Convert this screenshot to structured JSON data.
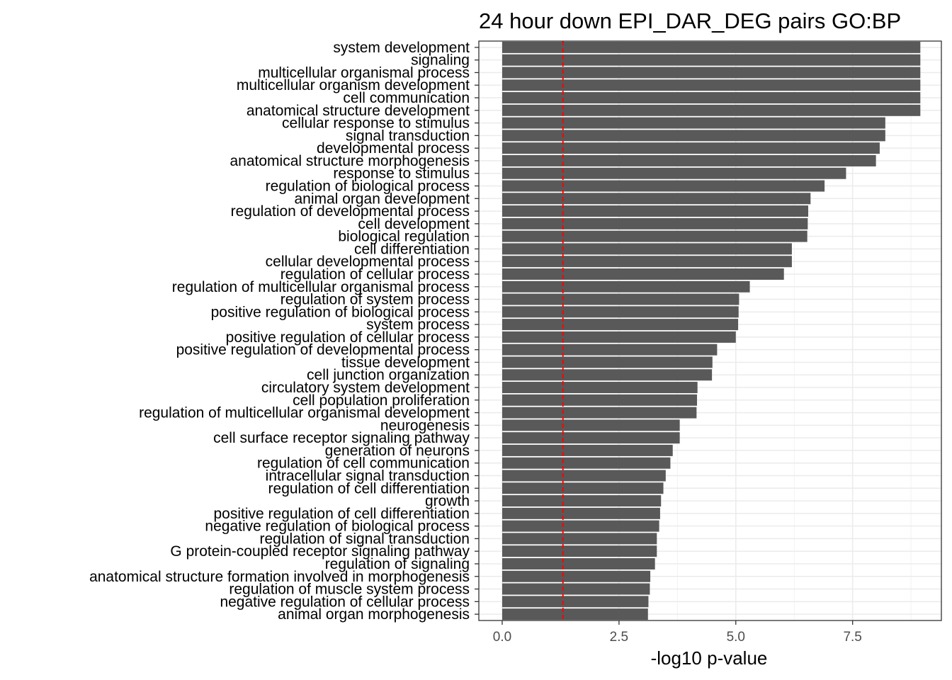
{
  "chart_data": {
    "type": "bar",
    "orientation": "horizontal",
    "title": "24 hour down EPI_DAR_DEG pairs GO:BP",
    "xlabel": "-log10 p-value",
    "ylabel": "",
    "xlim": [
      -0.5,
      9.4
    ],
    "xticks": [
      0.0,
      2.5,
      5.0,
      7.5
    ],
    "xtick_labels": [
      "0.0",
      "2.5",
      "5.0",
      "7.5"
    ],
    "threshold_line": {
      "value": 1.3,
      "color": "#ff0000",
      "style": "dashed"
    },
    "bar_color": "#595959",
    "grid": true,
    "legend": "none",
    "categories": [
      "system development",
      "signaling",
      "multicellular organismal process",
      "multicellular organism development",
      "cell communication",
      "anatomical structure development",
      "cellular response to stimulus",
      "signal transduction",
      "developmental process",
      "anatomical structure morphogenesis",
      "response to stimulus",
      "regulation of biological process",
      "animal organ development",
      "regulation of developmental process",
      "cell development",
      "biological regulation",
      "cell differentiation",
      "cellular developmental process",
      "regulation of cellular process",
      "regulation of multicellular organismal process",
      "regulation of system process",
      "positive regulation of biological process",
      "system process",
      "positive regulation of cellular process",
      "positive regulation of developmental process",
      "tissue development",
      "cell junction organization",
      "circulatory system development",
      "cell population proliferation",
      "regulation of multicellular organismal development",
      "neurogenesis",
      "cell surface receptor signaling pathway",
      "generation of neurons",
      "regulation of cell communication",
      "intracellular signal transduction",
      "regulation of cell differentiation",
      "growth",
      "positive regulation of cell differentiation",
      "negative regulation of biological process",
      "regulation of signal transduction",
      "G protein-coupled receptor signaling pathway",
      "regulation of signaling",
      "anatomical structure formation involved in morphogenesis",
      "regulation of muscle system process",
      "negative regulation of cellular process",
      "animal organ morphogenesis"
    ],
    "values": [
      8.95,
      8.95,
      8.95,
      8.95,
      8.95,
      8.95,
      8.2,
      8.2,
      8.08,
      8.0,
      7.36,
      6.9,
      6.6,
      6.55,
      6.54,
      6.53,
      6.2,
      6.2,
      6.03,
      5.3,
      5.07,
      5.06,
      5.05,
      5.0,
      4.6,
      4.5,
      4.49,
      4.18,
      4.17,
      4.16,
      3.8,
      3.8,
      3.65,
      3.6,
      3.5,
      3.45,
      3.4,
      3.38,
      3.36,
      3.31,
      3.31,
      3.27,
      3.17,
      3.16,
      3.13,
      3.12
    ]
  }
}
